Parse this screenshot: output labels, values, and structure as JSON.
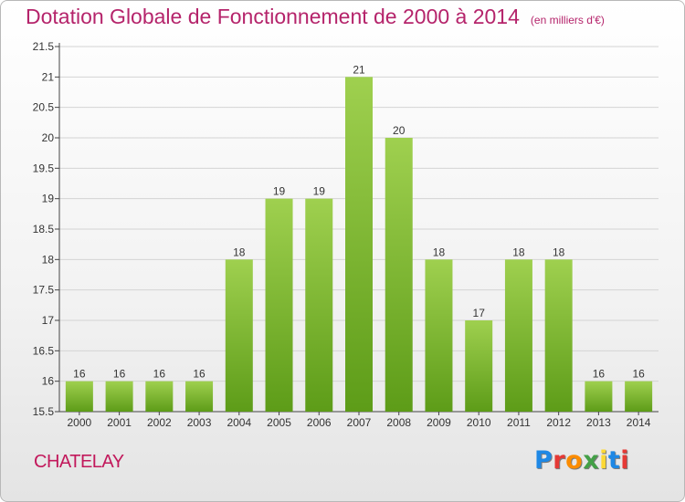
{
  "title": "Dotation Globale de Fonctionnement de 2000 à 2014",
  "unit": "(en milliers d'€)",
  "place": "CHATELAY",
  "logo": {
    "text": "Proxiti",
    "letter_colors": [
      "#1e88e5",
      "#e53935",
      "#fb8c00",
      "#43a047",
      "#fdd835",
      "#1e88e5",
      "#e53935"
    ]
  },
  "colors": {
    "title": "#b5246b",
    "bar_light": "#9fd04f",
    "bar_dark": "#5d9c18",
    "grid": "#d4d4d4"
  },
  "chart_data": {
    "type": "bar",
    "title": "Dotation Globale de Fonctionnement de 2000 à 2014",
    "categories": [
      "2000",
      "2001",
      "2002",
      "2003",
      "2004",
      "2005",
      "2006",
      "2007",
      "2008",
      "2009",
      "2010",
      "2011",
      "2012",
      "2013",
      "2014"
    ],
    "values": [
      16,
      16,
      16,
      16,
      18,
      19,
      19,
      21,
      20,
      18,
      17,
      18,
      18,
      16,
      16
    ],
    "value_labels": [
      "16",
      "16",
      "16",
      "16",
      "18",
      "19",
      "19",
      "21",
      "20",
      "18",
      "17",
      "18",
      "18",
      "16",
      "16"
    ],
    "ylim": [
      15.5,
      21.5
    ],
    "yticks": [
      15.5,
      16,
      16.5,
      17,
      17.5,
      18,
      18.5,
      19,
      19.5,
      20,
      20.5,
      21,
      21.5
    ],
    "ytick_labels": [
      "15.5",
      "16",
      "16.5",
      "17",
      "17.5",
      "18",
      "18.5",
      "19",
      "19.5",
      "20",
      "20.5",
      "21",
      "21.5"
    ],
    "grid": true,
    "xlabel": "",
    "ylabel": ""
  }
}
